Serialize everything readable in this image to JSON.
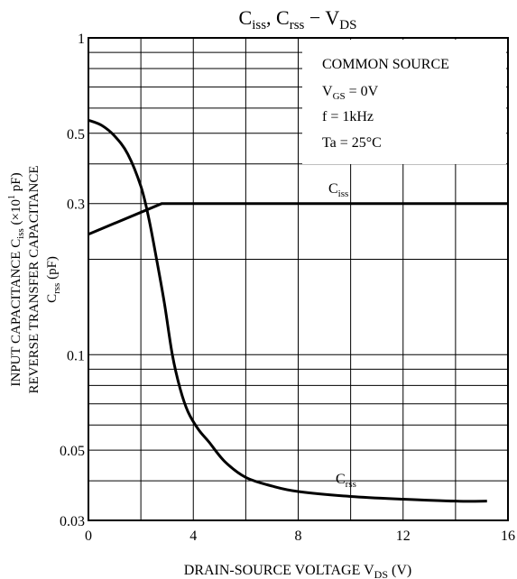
{
  "chart_data": {
    "type": "line",
    "title": {
      "part1": "C",
      "sub1": "iss",
      "part2": ", C",
      "sub2": "rss",
      "part3": " − V",
      "sub3": "DS"
    },
    "xlabel": {
      "main": "DRAIN-SOURCE   VOLTAGE  V",
      "sub": "DS",
      "tail": " (V)"
    },
    "ylabel": {
      "line1": {
        "a": "INPUT CAPACITANCE C",
        "sub": "iss",
        "b": " (×10",
        "sup": "1",
        "c": " pF)"
      },
      "line2": "REVERSE TRANSFER CAPACITANCE",
      "line3": {
        "a": "C",
        "sub": "rss",
        "b": " (pF)"
      }
    },
    "x_axis": {
      "min": 0,
      "max": 16,
      "scale": "linear",
      "ticks": [
        0,
        4,
        8,
        12,
        16
      ],
      "tick_labels": [
        "0",
        "4",
        "8",
        "12",
        "16"
      ],
      "grid_step": 2
    },
    "y_axis": {
      "min": 0.03,
      "max": 1,
      "scale": "log",
      "tick_labels": [
        {
          "value": 1,
          "label": "1"
        },
        {
          "value": 0.5,
          "label": "0.5"
        },
        {
          "value": 0.3,
          "label": "0.3"
        },
        {
          "value": 0.1,
          "label": "0.1"
        },
        {
          "value": 0.05,
          "label": "0.05"
        },
        {
          "value": 0.03,
          "label": "0.03"
        }
      ],
      "gridlines": [
        1,
        0.9,
        0.8,
        0.7,
        0.6,
        0.5,
        0.4,
        0.3,
        0.2,
        0.1,
        0.09,
        0.08,
        0.07,
        0.06,
        0.05,
        0.04,
        0.03
      ]
    },
    "grid": true,
    "conditions": {
      "line1": "COMMON SOURCE",
      "line2": {
        "a": "V",
        "sub": "GS",
        "b": " = 0V"
      },
      "line3": "f = 1kHz",
      "line4": "Ta = 25°C"
    },
    "series": [
      {
        "name": "Ciss",
        "label": {
          "a": "C",
          "sub": "iss"
        },
        "x": [
          0,
          2.8,
          16
        ],
        "y": [
          0.24,
          0.3,
          0.3
        ]
      },
      {
        "name": "Crss",
        "label": {
          "a": "C",
          "sub": "rss"
        },
        "x": [
          0,
          0.5,
          1,
          1.5,
          2,
          2.3,
          2.6,
          2.9,
          3.2,
          3.5,
          3.8,
          4.2,
          4.6,
          5.2,
          6,
          7,
          8,
          10,
          12,
          14,
          15.2
        ],
        "y": [
          0.55,
          0.53,
          0.49,
          0.43,
          0.34,
          0.27,
          0.2,
          0.145,
          0.1,
          0.078,
          0.066,
          0.058,
          0.053,
          0.046,
          0.041,
          0.0385,
          0.037,
          0.0357,
          0.035,
          0.0345,
          0.0345
        ]
      }
    ],
    "legend": "inline"
  }
}
